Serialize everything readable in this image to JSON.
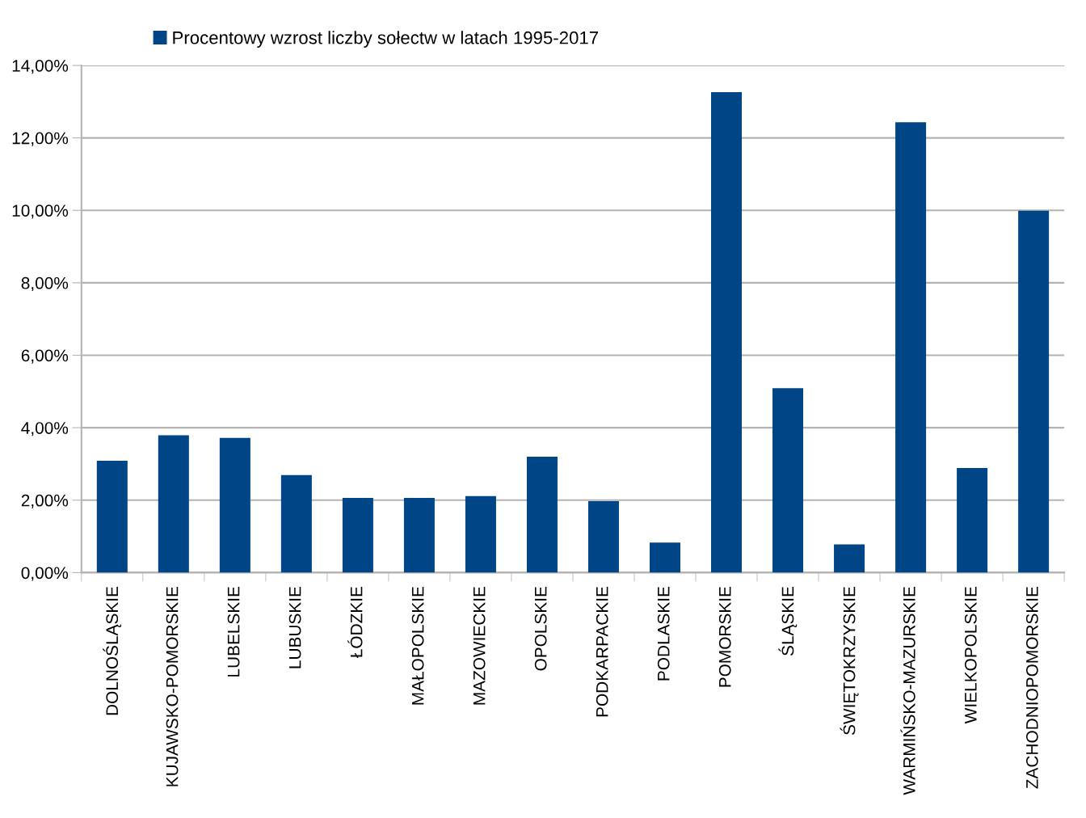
{
  "chart_data": {
    "type": "bar",
    "categories": [
      "DOLNOŚLĄSKIE",
      "KUJAWSKO-POMORSKIE",
      "LUBELSKIE",
      "LUBUSKIE",
      "ŁÓDZKIE",
      "MAŁOPOLSKIE",
      "MAZOWIECKIE",
      "OPOLSKIE",
      "PODKARPACKIE",
      "PODLASKIE",
      "POMORSKIE",
      "ŚLĄSKIE",
      "ŚWIĘTOKRZYSKIE",
      "WARMIŃSKO-MAZURSKIE",
      "WIELKOPOLSKIE",
      "ZACHODNIOPOMORSKIE"
    ],
    "series": [
      {
        "name": "Procentowy wzrost liczby sołectw w latach 1995-2017",
        "color": "#004586",
        "values": [
          3.09,
          3.79,
          3.72,
          2.69,
          2.06,
          2.06,
          2.11,
          3.2,
          1.97,
          0.83,
          13.26,
          5.09,
          0.78,
          12.43,
          2.89,
          9.99
        ]
      }
    ],
    "ylim": [
      0,
      14
    ],
    "yticks": [
      {
        "value": 0,
        "label": "0,00%"
      },
      {
        "value": 2,
        "label": "2,00%"
      },
      {
        "value": 4,
        "label": "4,00%"
      },
      {
        "value": 6,
        "label": "6,00%"
      },
      {
        "value": 8,
        "label": "8,00%"
      },
      {
        "value": 10,
        "label": "10,00%"
      },
      {
        "value": 12,
        "label": "12,00%"
      },
      {
        "value": 14,
        "label": "14,00%"
      }
    ],
    "grid": "y",
    "legend": "top"
  }
}
